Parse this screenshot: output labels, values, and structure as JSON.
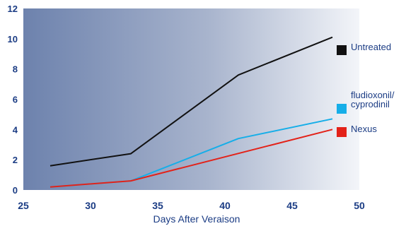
{
  "chart_data": {
    "type": "line",
    "title": "",
    "xlabel": "Days After Veraison",
    "ylabel": "",
    "xlim": [
      25,
      50
    ],
    "ylim": [
      0,
      12
    ],
    "xticks": [
      "25",
      "30",
      "35",
      "40",
      "45",
      "50"
    ],
    "yticks": [
      "0",
      "2",
      "4",
      "6",
      "8",
      "10",
      "12"
    ],
    "grid": false,
    "legend_position": "right",
    "series": [
      {
        "name": "Untreated",
        "color": "#111111",
        "x": [
          27,
          33,
          41,
          48
        ],
        "y": [
          1.6,
          2.4,
          7.6,
          10.1
        ]
      },
      {
        "name": "fludioxonil/ cyprodinil",
        "color": "#16aee8",
        "x": [
          27,
          33,
          41,
          48
        ],
        "y": [
          0.2,
          0.6,
          3.4,
          4.7
        ]
      },
      {
        "name": "Nexus",
        "color": "#e32219",
        "x": [
          27,
          33,
          48
        ],
        "y": [
          0.2,
          0.6,
          4.0
        ]
      }
    ]
  }
}
